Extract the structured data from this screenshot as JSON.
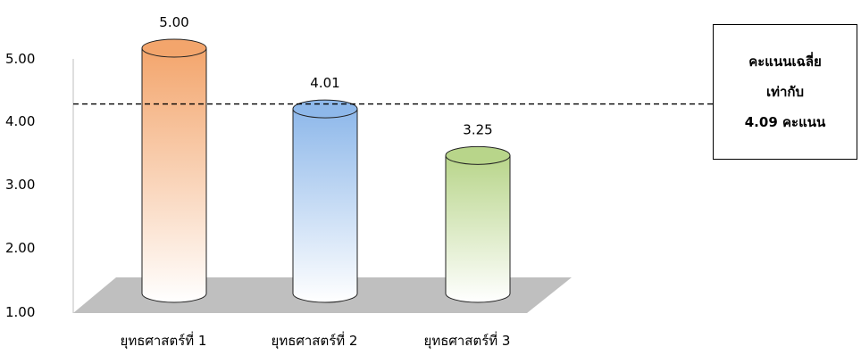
{
  "chart_data": {
    "type": "bar",
    "style": "3d-cylinder",
    "categories": [
      "ยุทธศาสตร์ที่ 1",
      "ยุทธศาสตร์ที่ 2",
      "ยุทธศาสตร์ที่ 3"
    ],
    "values": [
      5.0,
      4.01,
      3.25
    ],
    "value_labels": [
      "5.00",
      "4.01",
      "3.25"
    ],
    "bar_colors": [
      "#f3a56c",
      "#8eb8ea",
      "#b8d58a"
    ],
    "ylim": [
      1,
      5
    ],
    "y_ticks": [
      "1.00",
      "2.00",
      "3.00",
      "4.00",
      "5.00"
    ],
    "average_line": 4.09,
    "grid": false,
    "legend": "none"
  },
  "annotation": {
    "line1": "คะแนนเฉลี่ย",
    "line2": "เท่ากับ",
    "line3": "4.09 คะแนน"
  }
}
